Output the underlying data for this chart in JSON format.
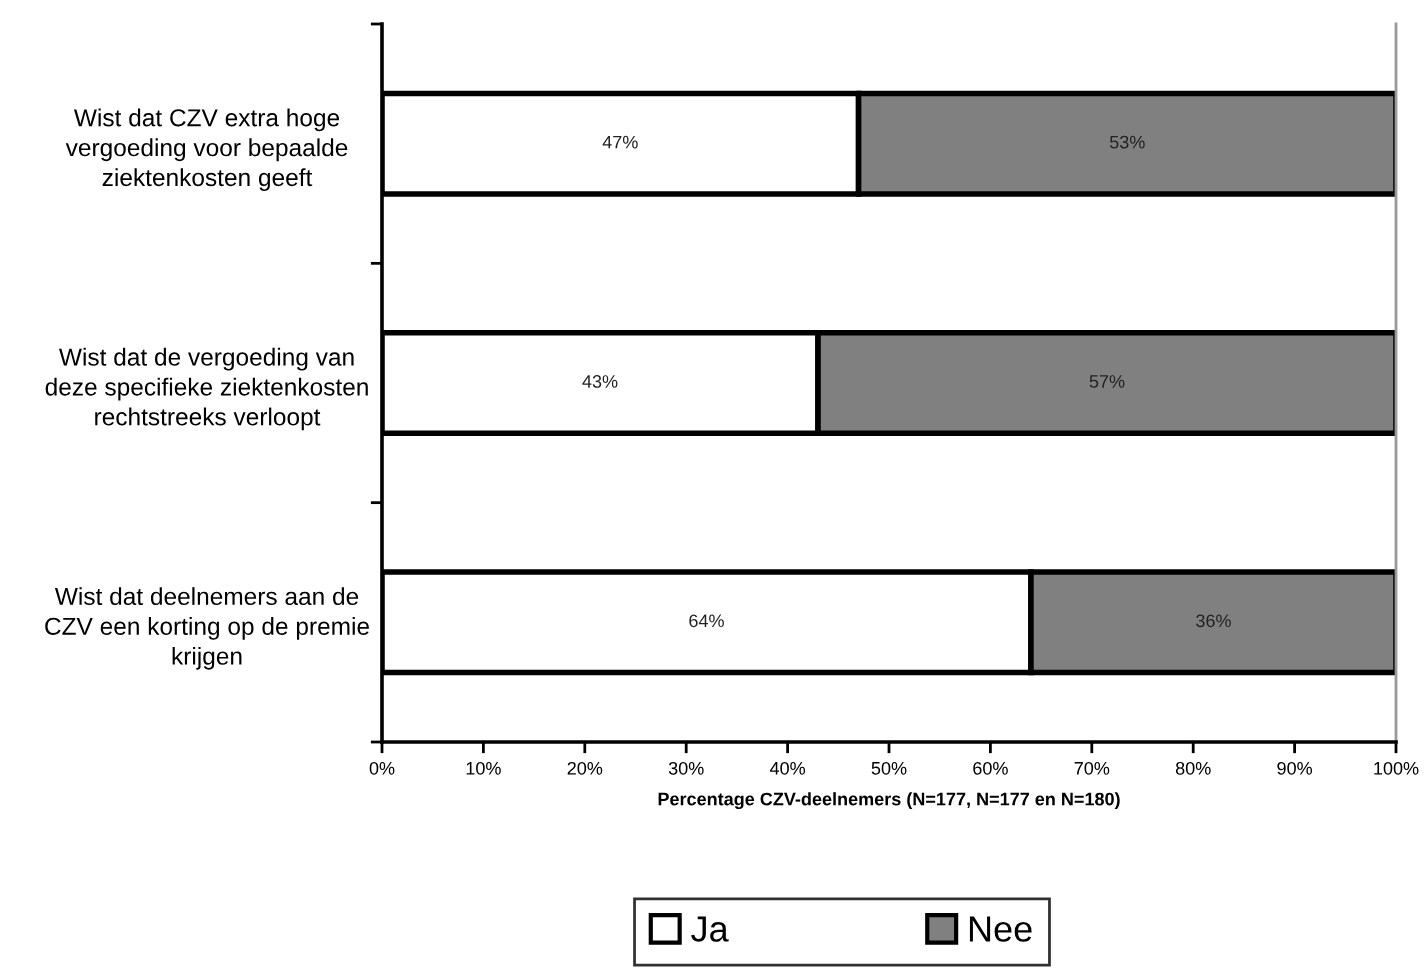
{
  "chart_data": {
    "type": "bar",
    "orientation": "horizontal",
    "stacked": true,
    "categories": [
      "Wist dat CZV extra hoge\nvergoeding voor bepaalde\nziektenkosten geeft",
      "Wist dat de vergoeding van\ndeze specifieke ziektenkosten\nrechtstreeks verloopt",
      "Wist dat deelnemers aan de\nCZV een korting op de premie\nkrijgen"
    ],
    "series": [
      {
        "name": "Ja",
        "color": "#ffffff",
        "values": [
          47,
          43,
          64
        ],
        "value_labels": [
          "47%",
          "43%",
          "64%"
        ]
      },
      {
        "name": "Nee",
        "color": "#808080",
        "values": [
          53,
          57,
          36
        ],
        "value_labels": [
          "53%",
          "57%",
          "36%"
        ]
      }
    ],
    "xlabel": "Percentage CZV-deelnemers (N=177, N=177 en N=180)",
    "xlim": [
      0,
      100
    ],
    "xticks": [
      {
        "value": 0,
        "label": "0%"
      },
      {
        "value": 10,
        "label": "10%"
      },
      {
        "value": 20,
        "label": "20%"
      },
      {
        "value": 30,
        "label": "30%"
      },
      {
        "value": 40,
        "label": "40%"
      },
      {
        "value": 50,
        "label": "50%"
      },
      {
        "value": 60,
        "label": "60%"
      },
      {
        "value": 70,
        "label": "70%"
      },
      {
        "value": 80,
        "label": "80%"
      },
      {
        "value": 90,
        "label": "90%"
      },
      {
        "value": 100,
        "label": "100%"
      }
    ],
    "grid": false,
    "legend": "bottom"
  }
}
